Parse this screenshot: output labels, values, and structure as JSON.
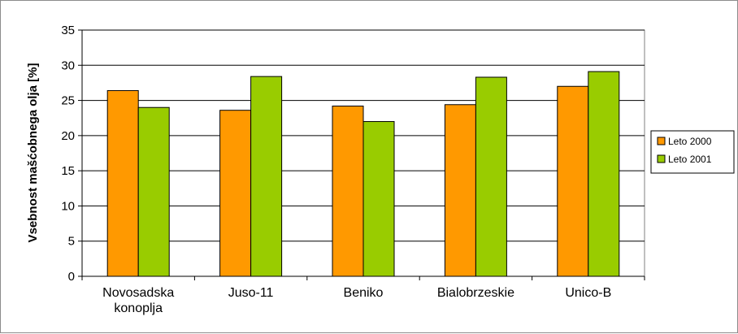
{
  "chart_data": {
    "type": "bar",
    "title": "",
    "xlabel": "",
    "ylabel": "Vsebnost mašćobnega olja [%]",
    "categories": [
      "Novosadska\nkonoplja",
      "Juso-11",
      "Beniko",
      "Bialobrzeskie",
      "Unico-B"
    ],
    "series": [
      {
        "name": "Leto 2000",
        "color": "#ff9900",
        "values": [
          26.4,
          23.6,
          24.2,
          24.4,
          27.0
        ]
      },
      {
        "name": "Leto 2001",
        "color": "#99cc00",
        "values": [
          24.0,
          28.4,
          22.0,
          28.3,
          29.1
        ]
      }
    ],
    "ylim": [
      0,
      35
    ],
    "yticks": [
      0,
      5,
      10,
      15,
      20,
      25,
      30,
      35
    ],
    "grid": true,
    "legend_position": "right"
  }
}
